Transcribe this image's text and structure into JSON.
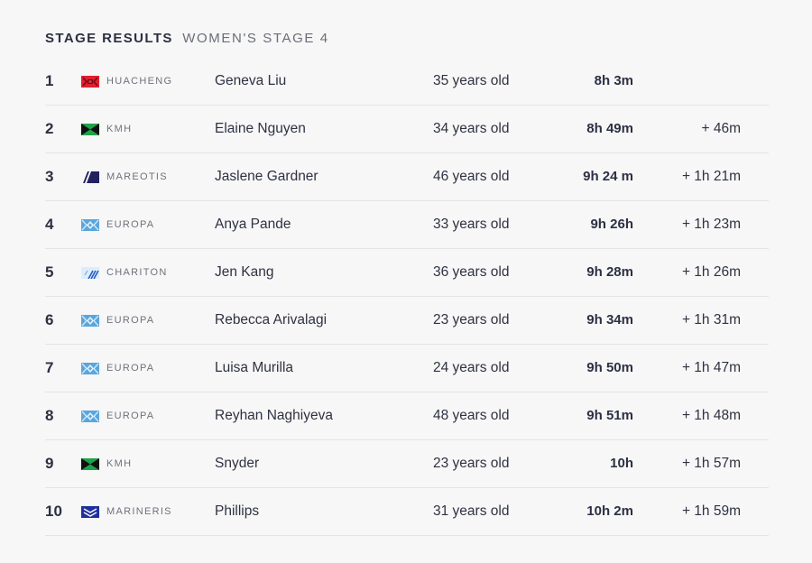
{
  "header": {
    "title": "STAGE RESULTS",
    "subtitle": "WOMEN'S STAGE 4"
  },
  "rows": [
    {
      "rank": "1",
      "team": "HUACHENG",
      "flag": "huacheng-flag-icon",
      "name": "Geneva Liu",
      "age": "35 years old",
      "time": "8h 3m",
      "gap": ""
    },
    {
      "rank": "2",
      "team": "KMH",
      "flag": "kmh-flag-icon",
      "name": "Elaine Nguyen",
      "age": "34 years old",
      "time": "8h 49m",
      "gap": "+ 46m"
    },
    {
      "rank": "3",
      "team": "MAREOTIS",
      "flag": "mareotis-flag-icon",
      "name": "Jaslene Gardner",
      "age": "46 years old",
      "time": "9h 24 m",
      "gap": "+ 1h 21m"
    },
    {
      "rank": "4",
      "team": "EUROPA",
      "flag": "europa-flag-icon",
      "name": "Anya Pande",
      "age": "33 years old",
      "time": "9h 26h",
      "gap": "+ 1h 23m"
    },
    {
      "rank": "5",
      "team": "CHARITON",
      "flag": "chariton-flag-icon",
      "name": "Jen Kang",
      "age": "36 years old",
      "time": "9h 28m",
      "gap": "+ 1h 26m"
    },
    {
      "rank": "6",
      "team": "EUROPA",
      "flag": "europa-flag-icon",
      "name": "Rebecca Arivalagi",
      "age": "23 years old",
      "time": "9h 34m",
      "gap": "+ 1h 31m"
    },
    {
      "rank": "7",
      "team": "EUROPA",
      "flag": "europa-flag-icon",
      "name": "Luisa Murilla",
      "age": "24 years old",
      "time": "9h 50m",
      "gap": "+ 1h 47m"
    },
    {
      "rank": "8",
      "team": "EUROPA",
      "flag": "europa-flag-icon",
      "name": "Reyhan Naghiyeva",
      "age": "48 years old",
      "time": "9h 51m",
      "gap": "+ 1h 48m"
    },
    {
      "rank": "9",
      "team": "KMH",
      "flag": "kmh-flag-icon",
      "name": "Snyder",
      "age": "23 years old",
      "time": "10h",
      "gap": "+ 1h 57m"
    },
    {
      "rank": "10",
      "team": "MARINERIS",
      "flag": "marineris-flag-icon",
      "name": "Phillips",
      "age": "31 years old",
      "time": "10h 2m",
      "gap": "+ 1h 59m"
    }
  ],
  "colors": {
    "background": "#f7f7f7",
    "huacheng": "#e0202e",
    "kmh_green": "#1ea34a",
    "mareotis_navy": "#23225e",
    "europa_blue": "#5aa6dc",
    "chariton_blue": "#2a5bbf",
    "marineris_blue": "#1f2f9c"
  }
}
